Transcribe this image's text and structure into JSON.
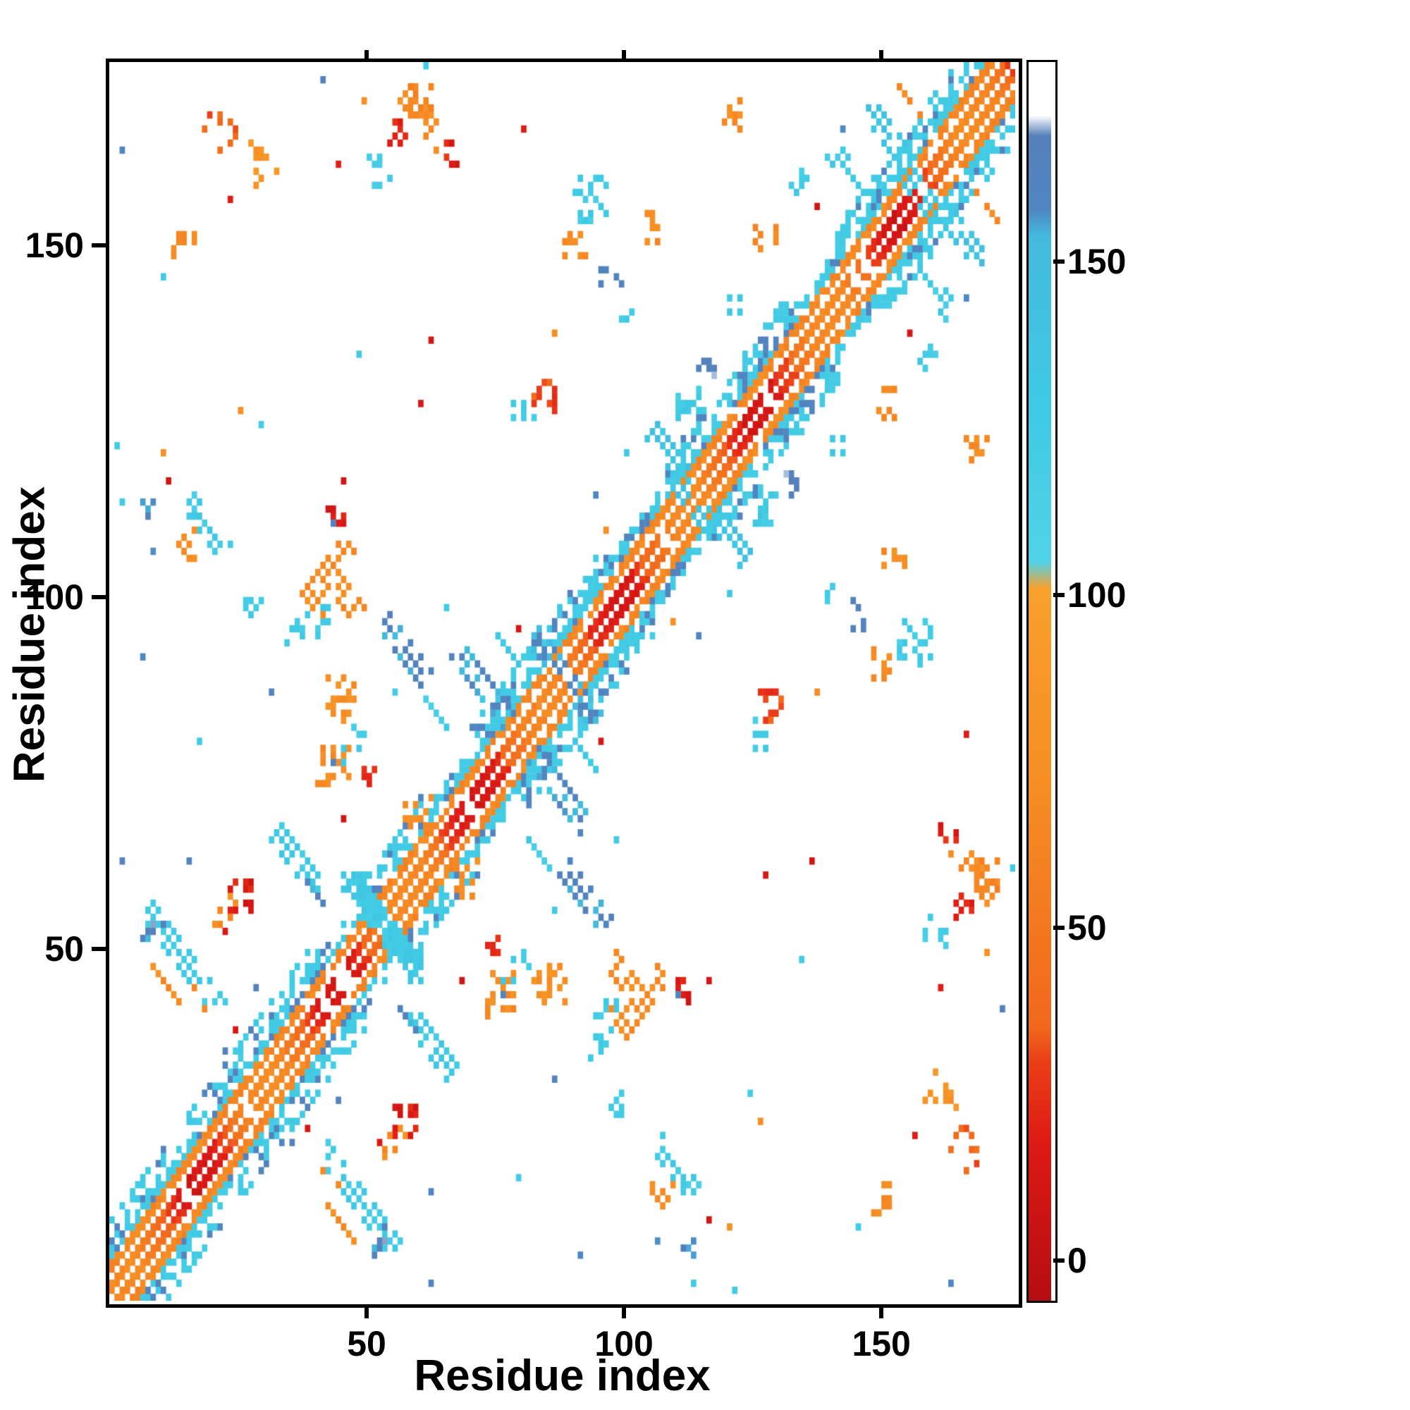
{
  "figure": {
    "background": "#ffffff"
  },
  "chart_data": {
    "type": "heatmap",
    "title": "",
    "xlabel": "Residue index",
    "ylabel": "Residue index",
    "x_ticks": [
      50,
      100,
      150
    ],
    "y_ticks": [
      50,
      100,
      150
    ],
    "x_range": [
      0,
      176
    ],
    "y_range": [
      0,
      176
    ],
    "n_residues": 176,
    "grid": false,
    "background_value_color": "#ffffff",
    "colorbar": {
      "position": "right",
      "ticks": [
        0,
        50,
        100,
        150
      ],
      "range": [
        -6,
        180
      ]
    },
    "colormap_stops": [
      {
        "v": -6,
        "c": "#b50d12"
      },
      {
        "v": 18,
        "c": "#de1a14"
      },
      {
        "v": 30,
        "c": "#ea3f17"
      },
      {
        "v": 35,
        "c": "#f1681c"
      },
      {
        "v": 72,
        "c": "#f68e24"
      },
      {
        "v": 101,
        "c": "#f9a02c"
      },
      {
        "v": 105,
        "c": "#50d3e8"
      },
      {
        "v": 130,
        "c": "#3fc9e4"
      },
      {
        "v": 154,
        "c": "#44b9dc"
      },
      {
        "v": 158,
        "c": "#4f86c2"
      },
      {
        "v": 169,
        "c": "#5580ba"
      },
      {
        "v": 172,
        "c": "#ffffff"
      },
      {
        "v": 180,
        "c": "#ffffff"
      }
    ],
    "seed": 42,
    "diagonal_band": {
      "inner_width": 2,
      "second_band": [
        4,
        5
      ],
      "flank": [
        6,
        8
      ],
      "wide_flank_segments": [
        [
          0,
          10
        ],
        [
          14,
          40
        ],
        [
          48,
          60
        ],
        [
          70,
          96
        ],
        [
          108,
          132
        ],
        [
          140,
          175
        ]
      ],
      "wide_flank_width": 11,
      "inner_value_base": 40,
      "inner_value_amp": 30,
      "second_value": 65,
      "flank_value": 125,
      "flank_blue_value": 162,
      "flank_blue_prob": 0.2,
      "flank_density": 0.72,
      "second_density": 0.85,
      "inner_gap_prob": 0.06
    },
    "clusters": [
      {
        "x": 14,
        "y": 48,
        "len": 14,
        "dir": "a",
        "w": 2,
        "v": 125,
        "density": 0.8
      },
      {
        "x": 11,
        "y": 44,
        "len": 6,
        "dir": "a",
        "w": 1,
        "v": 70,
        "density": 0.6
      },
      {
        "x": 8,
        "y": 52,
        "len": 4,
        "dir": "b",
        "w": 1,
        "v": 162,
        "density": 0.5
      },
      {
        "x": 25,
        "y": 57,
        "len": 5,
        "dir": "b",
        "w": 2,
        "v": 15,
        "density": 0.7
      },
      {
        "x": 22,
        "y": 55,
        "len": 4,
        "dir": "b",
        "w": 1,
        "v": 70,
        "density": 0.5
      },
      {
        "x": 18,
        "y": 110,
        "len": 8,
        "dir": "a",
        "w": 2,
        "v": 125,
        "density": 0.65
      },
      {
        "x": 15,
        "y": 107,
        "len": 5,
        "dir": "b",
        "w": 1,
        "v": 70,
        "density": 0.5
      },
      {
        "x": 7,
        "y": 112,
        "len": 3,
        "dir": "b",
        "w": 1,
        "v": 162,
        "density": 0.6
      },
      {
        "x": 27,
        "y": 97,
        "len": 4,
        "dir": "b",
        "w": 1,
        "v": 125,
        "density": 0.5
      },
      {
        "x": 42,
        "y": 103,
        "len": 9,
        "dir": "p",
        "w": 2,
        "v": 70,
        "density": 0.75
      },
      {
        "x": 44,
        "y": 110,
        "len": 4,
        "dir": "b",
        "w": 1,
        "v": 15,
        "density": 0.6
      },
      {
        "x": 36,
        "y": 95,
        "len": 4,
        "dir": "b",
        "w": 1,
        "v": 125,
        "density": 0.5
      },
      {
        "x": 14,
        "y": 150,
        "len": 4,
        "dir": "b",
        "w": 1,
        "v": 70,
        "density": 0.7
      },
      {
        "x": 21,
        "y": 166,
        "len": 6,
        "dir": "b",
        "w": 1,
        "v": 35,
        "density": 0.55
      },
      {
        "x": 30,
        "y": 161,
        "len": 6,
        "dir": "b",
        "w": 1,
        "v": 80,
        "density": 0.5
      },
      {
        "x": 36,
        "y": 62,
        "len": 9,
        "dir": "a",
        "w": 2,
        "v": 128,
        "density": 0.75
      },
      {
        "x": 40,
        "y": 57,
        "len": 5,
        "dir": "a",
        "w": 1,
        "v": 162,
        "density": 0.5
      },
      {
        "x": 53,
        "y": 53,
        "len": 12,
        "dir": "a",
        "w": 3,
        "v": 128,
        "density": 0.8
      },
      {
        "x": 50,
        "y": 55,
        "len": 10,
        "dir": "a",
        "w": 2,
        "v": 128,
        "density": 0.7
      },
      {
        "x": 57,
        "y": 92,
        "len": 9,
        "dir": "a",
        "w": 2,
        "v": 160,
        "density": 0.75
      },
      {
        "x": 62,
        "y": 84,
        "len": 6,
        "dir": "a",
        "w": 1,
        "v": 125,
        "density": 0.6
      },
      {
        "x": 60,
        "y": 70,
        "len": 6,
        "dir": "b",
        "w": 1,
        "v": 70,
        "density": 0.5
      },
      {
        "x": 72,
        "y": 87,
        "len": 10,
        "dir": "a",
        "w": 2,
        "v": 158,
        "density": 0.8
      },
      {
        "x": 76,
        "y": 93,
        "len": 6,
        "dir": "a",
        "w": 1,
        "v": 125,
        "density": 0.55
      },
      {
        "x": 88,
        "y": 88,
        "len": 12,
        "dir": "a",
        "w": 2,
        "v": 155,
        "density": 0.7
      },
      {
        "x": 43,
        "y": 76,
        "len": 6,
        "dir": "b",
        "w": 2,
        "v": 70,
        "density": 0.6
      },
      {
        "x": 47,
        "y": 80,
        "len": 4,
        "dir": "b",
        "w": 1,
        "v": 125,
        "density": 0.4
      },
      {
        "x": 50,
        "y": 74,
        "len": 3,
        "dir": "b",
        "w": 1,
        "v": 20,
        "density": 0.5
      },
      {
        "x": 84,
        "y": 128,
        "len": 5,
        "dir": "b",
        "w": 2,
        "v": 30,
        "density": 0.65
      },
      {
        "x": 80,
        "y": 125,
        "len": 4,
        "dir": "b",
        "w": 1,
        "v": 125,
        "density": 0.5
      },
      {
        "x": 93,
        "y": 156,
        "len": 7,
        "dir": "b",
        "w": 2,
        "v": 125,
        "density": 0.55
      },
      {
        "x": 90,
        "y": 150,
        "len": 4,
        "dir": "b",
        "w": 1,
        "v": 70,
        "density": 0.55
      },
      {
        "x": 97,
        "y": 145,
        "len": 4,
        "dir": "b",
        "w": 1,
        "v": 162,
        "density": 0.5
      },
      {
        "x": 100,
        "y": 139,
        "len": 3,
        "dir": "b",
        "w": 1,
        "v": 125,
        "density": 0.5
      },
      {
        "x": 104,
        "y": 152,
        "len": 4,
        "dir": "b",
        "w": 1,
        "v": 70,
        "density": 0.5
      },
      {
        "x": 108,
        "y": 120,
        "len": 7,
        "dir": "a",
        "w": 2,
        "v": 140,
        "density": 0.7
      },
      {
        "x": 113,
        "y": 113,
        "len": 10,
        "dir": "a",
        "w": 2,
        "v": 135,
        "density": 0.6
      },
      {
        "x": 112,
        "y": 127,
        "len": 5,
        "dir": "b",
        "w": 2,
        "v": 125,
        "density": 0.55
      },
      {
        "x": 116,
        "y": 132,
        "len": 4,
        "dir": "b",
        "w": 1,
        "v": 162,
        "density": 0.5
      },
      {
        "x": 121,
        "y": 141,
        "len": 3,
        "dir": "b",
        "w": 1,
        "v": 125,
        "density": 0.45
      },
      {
        "x": 127,
        "y": 150,
        "len": 4,
        "dir": "b",
        "w": 1,
        "v": 70,
        "density": 0.45
      },
      {
        "x": 133,
        "y": 158,
        "len": 4,
        "dir": "b",
        "w": 1,
        "v": 125,
        "density": 0.45
      },
      {
        "x": 143,
        "y": 160,
        "len": 6,
        "dir": "a",
        "w": 2,
        "v": 125,
        "density": 0.65
      },
      {
        "x": 150,
        "y": 166,
        "len": 6,
        "dir": "a",
        "w": 2,
        "v": 140,
        "density": 0.65
      },
      {
        "x": 157,
        "y": 157,
        "len": 10,
        "dir": "a",
        "w": 2,
        "v": 130,
        "density": 0.6
      },
      {
        "x": 155,
        "y": 170,
        "len": 5,
        "dir": "a",
        "w": 1,
        "v": 70,
        "density": 0.55
      },
      {
        "x": 60,
        "y": 168,
        "len": 6,
        "dir": "a",
        "w": 2,
        "v": 70,
        "density": 0.55
      },
      {
        "x": 66,
        "y": 163,
        "len": 4,
        "dir": "b",
        "w": 1,
        "v": 20,
        "density": 0.5
      },
      {
        "x": 52,
        "y": 160,
        "len": 4,
        "dir": "b",
        "w": 1,
        "v": 125,
        "density": 0.4
      },
      {
        "x": 85,
        "y": 45,
        "len": 6,
        "dir": "b",
        "w": 2,
        "v": 75,
        "density": 0.6
      },
      {
        "x": 100,
        "y": 45,
        "len": 6,
        "dir": "a",
        "w": 2,
        "v": 70,
        "density": 0.6
      },
      {
        "x": 96,
        "y": 40,
        "len": 4,
        "dir": "b",
        "w": 1,
        "v": 125,
        "density": 0.5
      },
      {
        "x": 168,
        "y": 120,
        "len": 5,
        "dir": "b",
        "w": 1,
        "v": 70,
        "density": 0.5
      },
      {
        "x": 170,
        "y": 60,
        "len": 5,
        "dir": "b",
        "w": 2,
        "v": 60,
        "density": 0.6
      },
      {
        "x": 165,
        "y": 55,
        "len": 4,
        "dir": "b",
        "w": 1,
        "v": 20,
        "density": 0.5
      }
    ],
    "speckles": {
      "count": 55,
      "values": [
        15,
        70,
        125,
        162
      ]
    }
  },
  "layout_note": "protein residue-residue contact map with colorbar"
}
